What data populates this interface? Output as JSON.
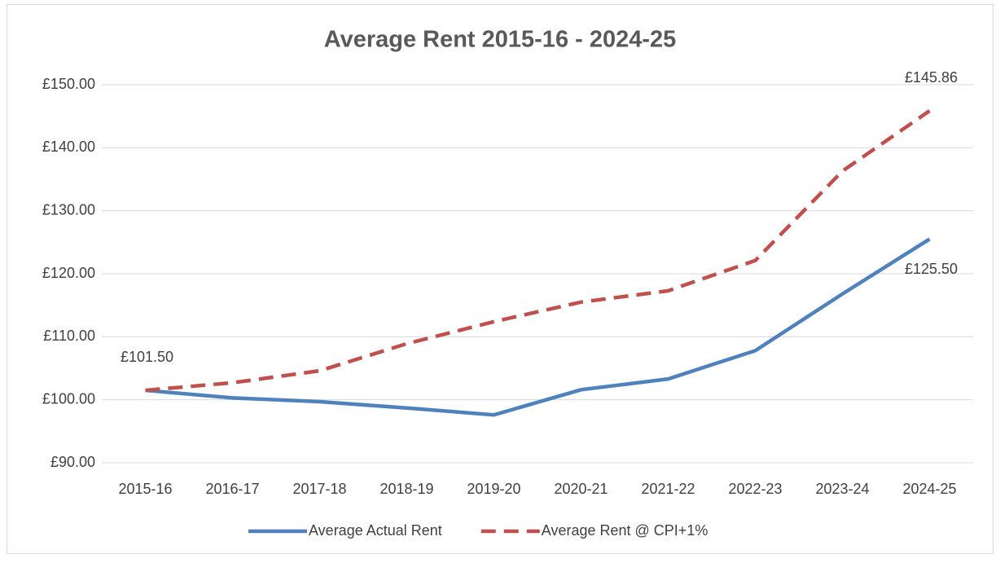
{
  "chart_data": {
    "type": "line",
    "title": "Average Rent 2015-16 - 2024-25",
    "categories": [
      "2015-16",
      "2016-17",
      "2017-18",
      "2018-19",
      "2019-20",
      "2020-21",
      "2021-22",
      "2022-23",
      "2023-24",
      "2024-25"
    ],
    "series": [
      {
        "name": "Average Actual Rent",
        "color": "#4f81bd",
        "dash": false,
        "values": [
          101.5,
          100.3,
          99.7,
          98.7,
          97.6,
          101.6,
          103.3,
          107.8,
          116.8,
          125.5
        ],
        "value_labels": [
          "£101.50",
          null,
          null,
          null,
          null,
          null,
          null,
          null,
          null,
          "£125.50"
        ]
      },
      {
        "name": "Average Rent @ CPI+1%",
        "color": "#c0504d",
        "dash": true,
        "values": [
          101.5,
          102.7,
          104.6,
          108.9,
          112.4,
          115.5,
          117.3,
          122.1,
          136.3,
          145.86
        ],
        "value_labels": [
          null,
          null,
          null,
          null,
          null,
          null,
          null,
          null,
          null,
          "£145.86"
        ]
      }
    ],
    "ylim": [
      90,
      150
    ],
    "yticks": [
      {
        "value": 90,
        "label": "£90.00"
      },
      {
        "value": 100,
        "label": "£100.00"
      },
      {
        "value": 110,
        "label": "£110.00"
      },
      {
        "value": 120,
        "label": "£120.00"
      },
      {
        "value": 130,
        "label": "£130.00"
      },
      {
        "value": 140,
        "label": "£140.00"
      },
      {
        "value": 150,
        "label": "£150.00"
      }
    ],
    "grid": true,
    "legend": "bottom"
  }
}
